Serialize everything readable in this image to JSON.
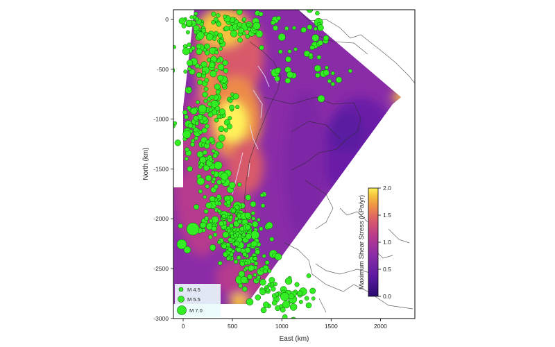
{
  "map": {
    "xlabel": "East (km)",
    "ylabel": "North (km)",
    "x_ticks": [
      0,
      500,
      1000,
      1500,
      2000
    ],
    "y_ticks": [
      0,
      -500,
      -1000,
      -1500,
      -2000,
      -2500,
      -3000
    ],
    "xlim": [
      -100,
      2300
    ],
    "ylim": [
      -3000,
      100
    ],
    "field_name": "Maximum Shear Stress"
  },
  "colorbar": {
    "label": "Maximum Shear Stress (KPa/yr)",
    "ticks": [
      "2.0",
      "1.5",
      "1.0",
      "0.5",
      "0.0"
    ],
    "range": [
      0.0,
      2.0
    ],
    "colors": [
      "#2a0a6e",
      "#5a1aa0",
      "#8a2ca8",
      "#b63a8e",
      "#d85a6a",
      "#ec8a48",
      "#f6c23e",
      "#fff25a"
    ]
  },
  "legend": {
    "items": [
      {
        "label": "M 4.5",
        "magnitude": 4.5
      },
      {
        "label": "M 5.5",
        "magnitude": 5.5
      },
      {
        "label": "M 7.0",
        "magnitude": 7.0
      }
    ]
  },
  "colors": {
    "quake_fill": "#33ee22",
    "quake_stroke": "#0c5a0c",
    "coast": "#2b2b2b",
    "fault": "#e8e0ff"
  }
}
